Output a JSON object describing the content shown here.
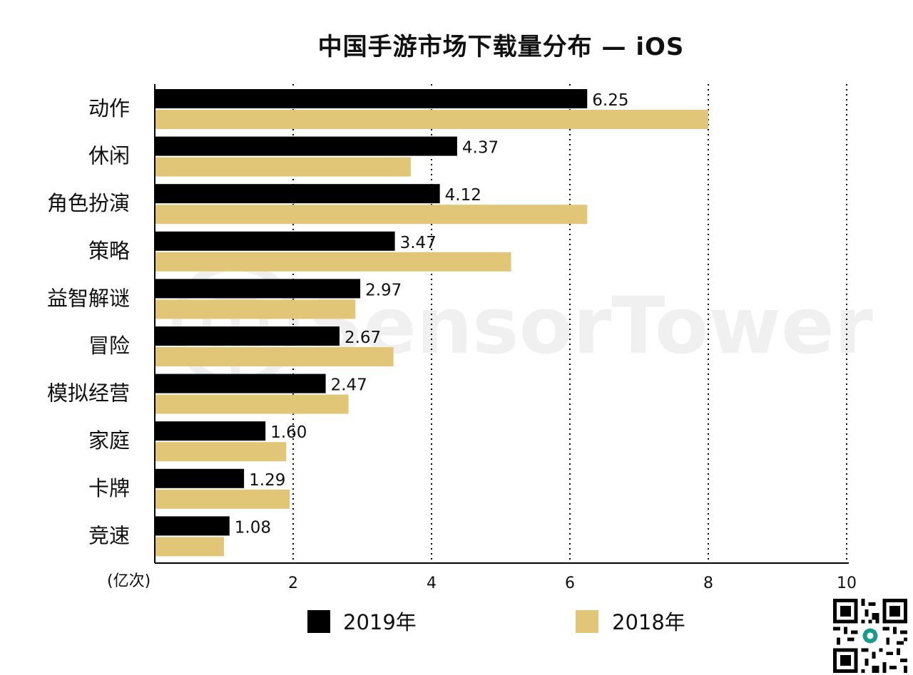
{
  "chart_data": {
    "type": "bar",
    "orientation": "horizontal",
    "title": "中国手游市场下载量分布 — iOS",
    "xlabel": "(亿次)",
    "ylabel": "",
    "xlim": [
      0,
      10
    ],
    "xticks": [
      2,
      4,
      6,
      8,
      10
    ],
    "grid": "vertical-dotted",
    "legend_position": "bottom",
    "categories": [
      "动作",
      "休闲",
      "角色扮演",
      "策略",
      "益智解谜",
      "冒险",
      "模拟经营",
      "家庭",
      "卡牌",
      "竞速"
    ],
    "series": [
      {
        "name": "2019年",
        "color": "#000000",
        "values": [
          6.25,
          4.37,
          4.12,
          3.47,
          2.97,
          2.67,
          2.47,
          1.6,
          1.29,
          1.08
        ],
        "value_labels": [
          "6.25",
          "4.37",
          "4.12",
          "3.47",
          "2.97",
          "2.67",
          "2.47",
          "1.60",
          "1.29",
          "1.08"
        ]
      },
      {
        "name": "2018年",
        "color": "#e2c678",
        "values": [
          8.0,
          3.7,
          6.25,
          5.15,
          2.9,
          3.45,
          2.8,
          1.9,
          1.95,
          1.0
        ]
      }
    ]
  },
  "watermark": {
    "text": "SensorTower",
    "icon": "sensor-tower-logo-icon"
  },
  "qr": {
    "icon": "qr-code-icon"
  }
}
